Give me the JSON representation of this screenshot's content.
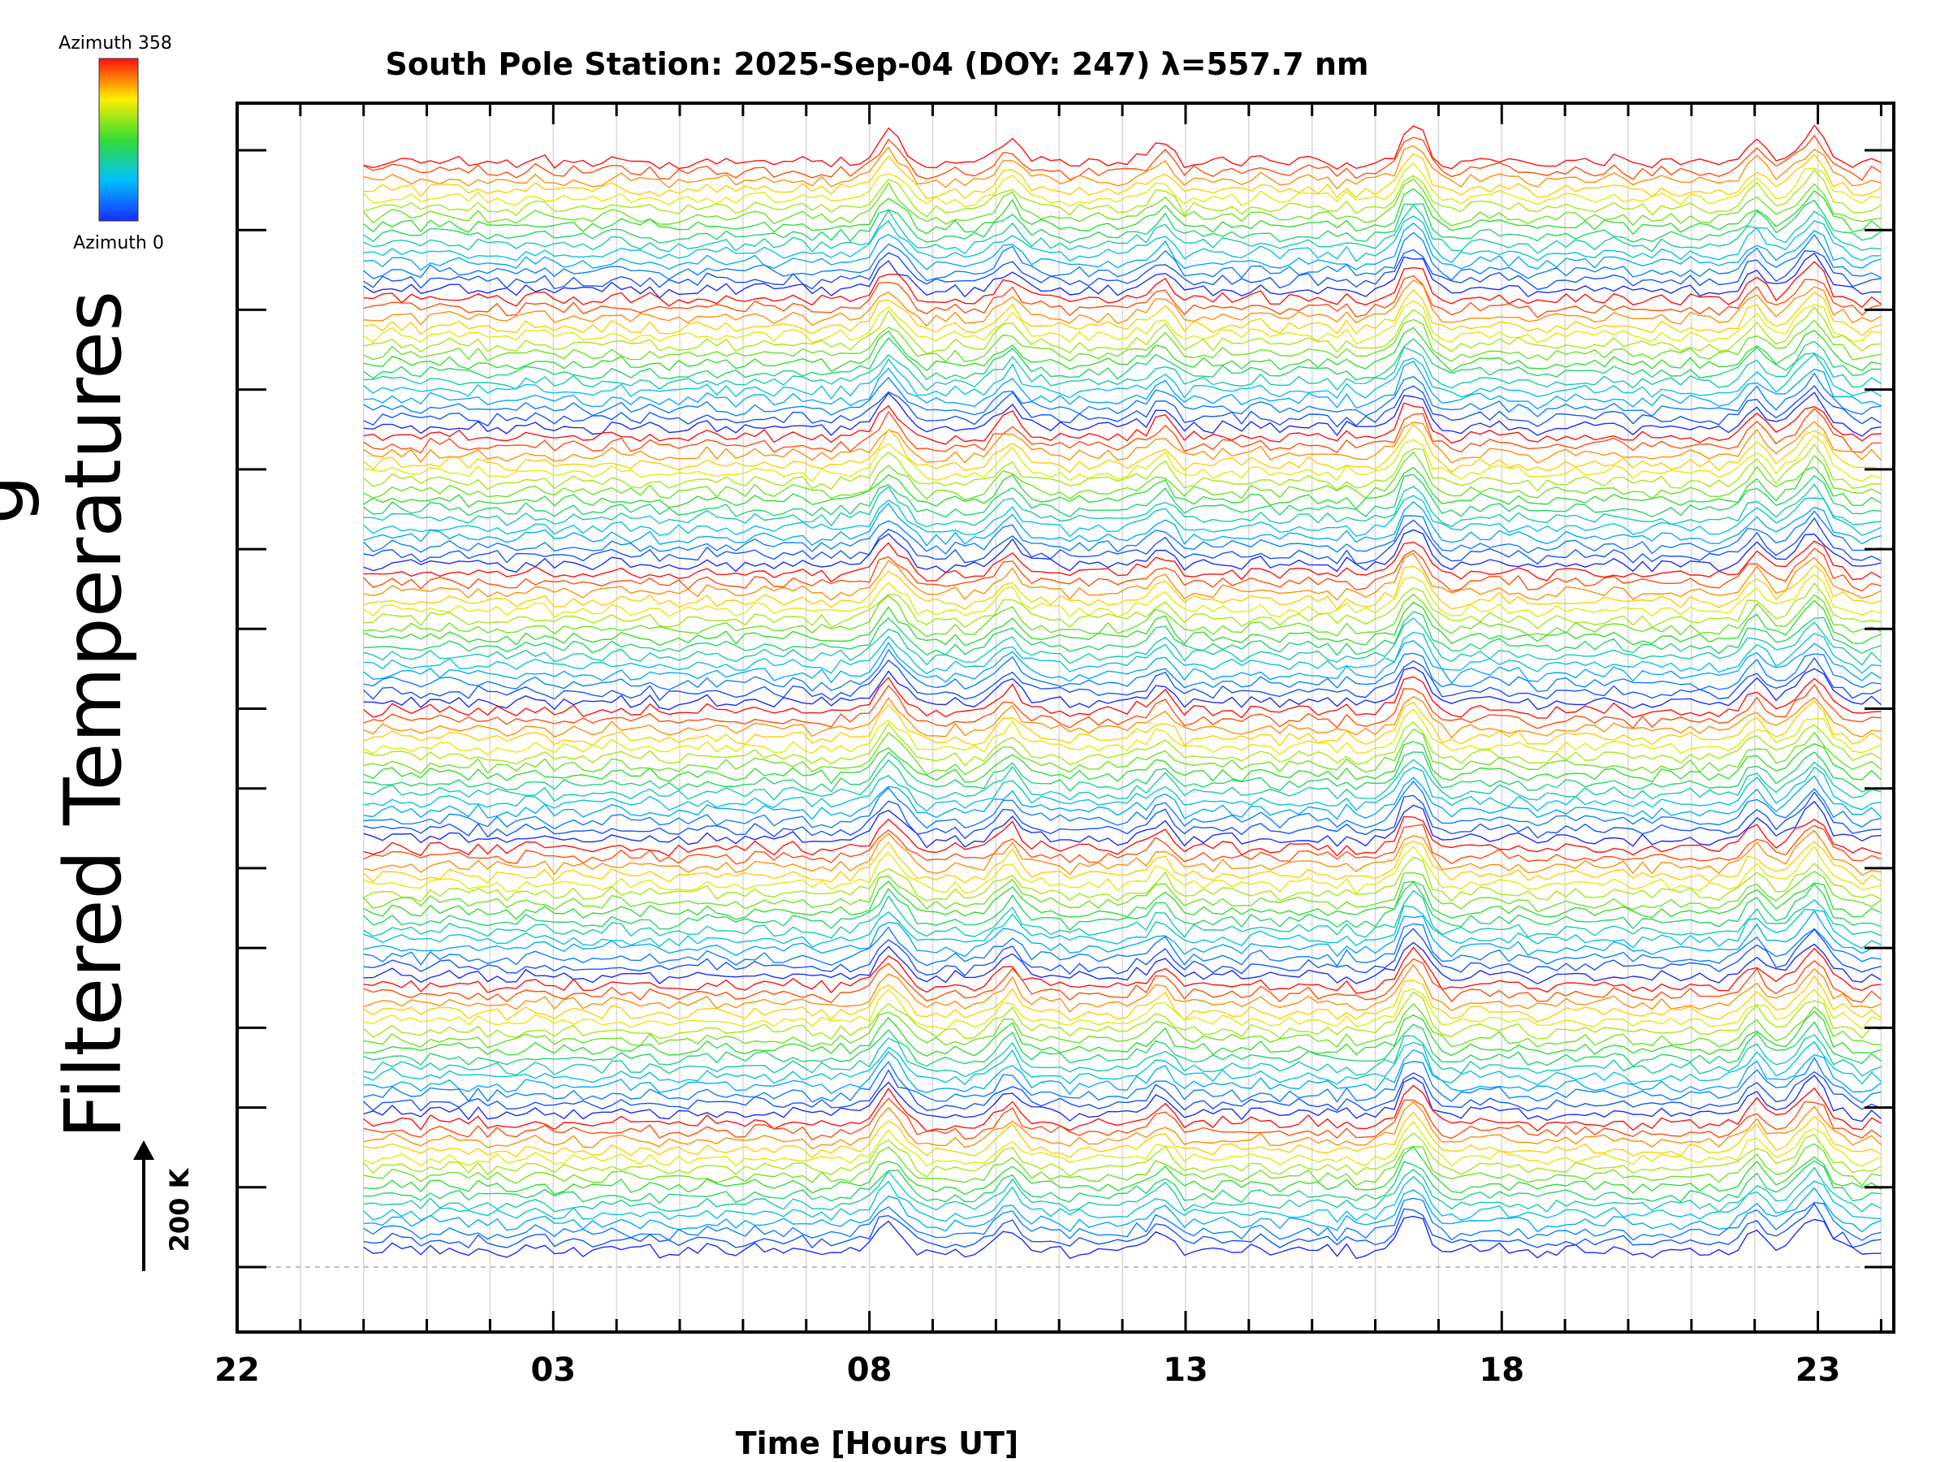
{
  "chart_data": {
    "type": "line",
    "title": "South Pole Station: 2025-Sep-04 (DOY: 247) λ=557.7 nm",
    "xlabel": "Time [Hours UT]",
    "ylabel": "Filtered Temperatures",
    "ylabel_partial": "g",
    "xlim": [
      22,
      48.2
    ],
    "x_ticks": [
      {
        "value": 22,
        "label": "22"
      },
      {
        "value": 27,
        "label": "03"
      },
      {
        "value": 32,
        "label": "08"
      },
      {
        "value": 37,
        "label": "13"
      },
      {
        "value": 42,
        "label": "18"
      },
      {
        "value": 47,
        "label": "23"
      }
    ],
    "x_minor_step_hours": 1,
    "data_start_hour": 24.0,
    "data_end_hour": 48.0,
    "series_count": 120,
    "stack_groups": 8,
    "stack_spacing_k": 15,
    "scale_bar": {
      "value": 200,
      "unit": "K",
      "label": "200 K"
    },
    "colorbar": {
      "min_label": "Azimuth 0",
      "max_label": "Azimuth 358",
      "min": 0,
      "max": 358,
      "colormap": "rainbow (blue → cyan → green → yellow → red)"
    },
    "common_spike_hours": [
      32.3,
      34.2,
      36.6,
      40.6,
      46.0,
      46.8,
      47.0
    ],
    "colors": {
      "axis": "#000000",
      "gridline": "#d8d8d8",
      "baseline": "#aaaaaa",
      "blue": "#1f3ee8",
      "red": "#ee2222"
    }
  }
}
